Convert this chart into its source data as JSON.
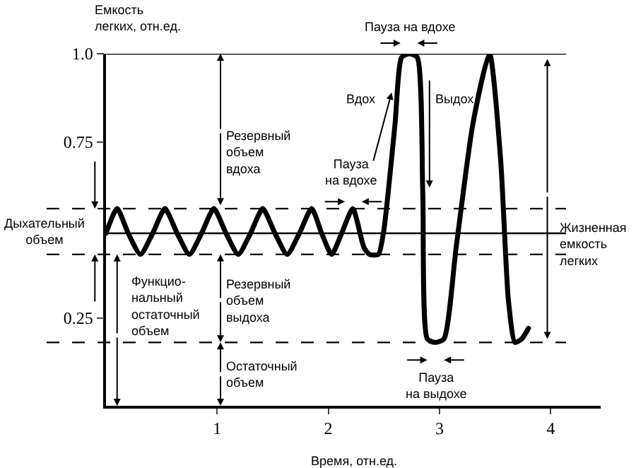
{
  "chart_data": {
    "type": "line",
    "xlabel": "Время, отн.ед.",
    "ylabel": "Емкость\nлегких, отн.ед.",
    "x": [
      0,
      0.1,
      0.2,
      0.31,
      0.42,
      0.53,
      0.64,
      0.75,
      0.86,
      0.97,
      1.08,
      1.19,
      1.3,
      1.41,
      1.52,
      1.63,
      1.74,
      1.85,
      1.94,
      2.03,
      2.12,
      2.22,
      2.32,
      2.37,
      2.45,
      2.5,
      2.6,
      2.66,
      2.73,
      2.8,
      2.85,
      2.89,
      2.96,
      3.04,
      3.15,
      3.3,
      3.45,
      3.55,
      3.62,
      3.68,
      3.74,
      3.8
    ],
    "values": [
      0.49,
      0.56,
      0.49,
      0.43,
      0.49,
      0.56,
      0.49,
      0.43,
      0.49,
      0.56,
      0.49,
      0.43,
      0.49,
      0.56,
      0.49,
      0.43,
      0.49,
      0.56,
      0.49,
      0.43,
      0.49,
      0.56,
      0.45,
      0.43,
      0.43,
      0.5,
      0.8,
      0.99,
      1.0,
      0.99,
      0.6,
      0.19,
      0.18,
      0.19,
      0.45,
      0.8,
      1.0,
      0.7,
      0.3,
      0.18,
      0.19,
      0.22
    ],
    "color": "#000000",
    "xlim": [
      0,
      4.45
    ],
    "ylim": [
      0,
      1.0
    ],
    "xticks": [
      1,
      2,
      3,
      4
    ],
    "yticks": [
      0.25,
      0.75,
      {
        "value": 1.0,
        "label": "1.0"
      }
    ],
    "marker": "none",
    "line_style": "solid",
    "ref_lines": [
      {
        "axis": "y",
        "value": 1.0,
        "line_style": "solid"
      },
      {
        "axis": "y",
        "value": 0.56,
        "line_style": "dashed"
      },
      {
        "axis": "y",
        "value": 0.49,
        "line_style": "solid"
      },
      {
        "axis": "y",
        "value": 0.43,
        "line_style": "dashed"
      },
      {
        "axis": "y",
        "value": 0.18,
        "line_style": "dashed"
      }
    ],
    "annotations": [
      {
        "text": "Резервный\nобъем\nвдоха",
        "x": 1.03,
        "y": 1.0
      },
      "Дыхательный\nобъем",
      {
        "text": "Функцио-\nнальный\nостаточный\nобъем",
        "x": 0.1,
        "y": 0.43
      },
      {
        "text": "Резервный\nобъем\nвыдоха",
        "x": 1.03,
        "y": 0.43
      },
      {
        "text": "Остаточный\nобъем",
        "x": 1.03,
        "y": 0.18
      },
      {
        "text": "Пауза\nна вдохе",
        "x": 2.15,
        "y": 0.58
      },
      "Пауза на вдохе",
      "Вдох",
      {
        "text": "Выдох",
        "x": 2.91,
        "y": 0.62
      },
      "Жизненная\nемкость\nлегких",
      "Пауза\nна выдохе"
    ]
  }
}
